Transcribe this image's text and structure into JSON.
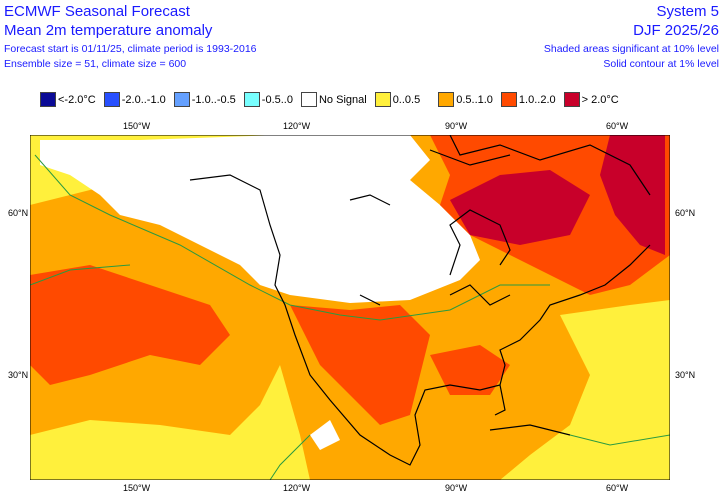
{
  "header": {
    "title": "ECMWF Seasonal Forecast",
    "subtitle": "Mean 2m temperature anomaly",
    "line3": "Forecast start is 01/11/25, climate period is 1993-2016",
    "line4": "Ensemble size = 51, climate size = 600",
    "system": "System 5",
    "season": "DJF 2025/26",
    "note1": "Shaded areas significant at 10% level",
    "note2": "Solid contour at 1% level"
  },
  "legend": [
    {
      "label": "<-2.0°C",
      "color": "#0a0a96"
    },
    {
      "label": "-2.0..-1.0",
      "color": "#2850ff"
    },
    {
      "label": "-1.0..-0.5",
      "color": "#64a0ff"
    },
    {
      "label": "-0.5..0",
      "color": "#78ffff"
    },
    {
      "label": "No Signal",
      "color": "#ffffff"
    },
    {
      "label": "0..0.5",
      "color": "#fff03c"
    },
    {
      "label": "0.5..1.0",
      "color": "#ffa800"
    },
    {
      "label": "1.0..2.0",
      "color": "#ff4a00"
    },
    {
      "label": "> 2.0°C",
      "color": "#c8002a"
    }
  ],
  "axes": {
    "lon_ticks": [
      "150°W",
      "120°W",
      "90°W",
      "60°W"
    ],
    "lat_ticks": [
      "60°N",
      "30°N"
    ]
  }
}
